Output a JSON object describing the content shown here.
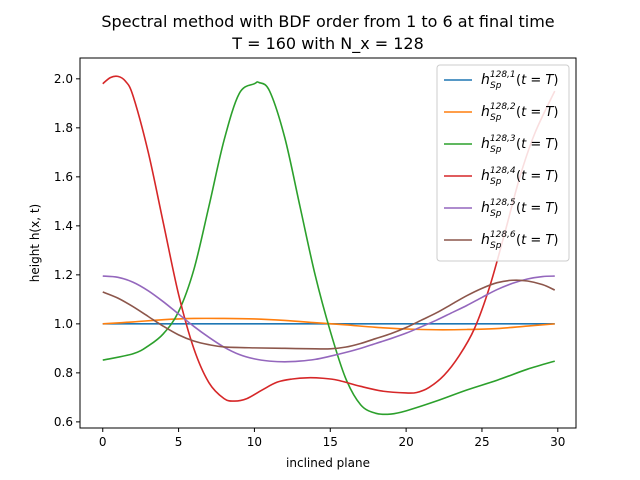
{
  "chart_data": {
    "type": "line",
    "title_lines": [
      "Spectral method with BDF order from 1 to 6 at final time",
      "T = 160 with N_x = 128"
    ],
    "xlabel": "inclined plane",
    "ylabel": "height h(x, t)",
    "xlim": [
      -1.5,
      31.2
    ],
    "ylim": [
      0.575,
      2.085
    ],
    "xticks": [
      0,
      5,
      10,
      15,
      20,
      25,
      30
    ],
    "yticks": [
      0.6,
      0.8,
      1.0,
      1.2,
      1.4,
      1.6,
      1.8,
      2.0
    ],
    "xtick_labels": [
      "0",
      "5",
      "10",
      "15",
      "20",
      "25",
      "30"
    ],
    "ytick_labels": [
      "0.6",
      "0.8",
      "1.0",
      "1.2",
      "1.4",
      "1.6",
      "1.8",
      "2.0"
    ],
    "grid": false,
    "legend_position": "top-right",
    "series": [
      {
        "legend": {
          "base": "h",
          "sub": "Sp",
          "sup": "128,1",
          "tail_a": "(",
          "tail_t": "t",
          "tail_b": " = ",
          "tail_T": "T",
          "tail_c": ")"
        },
        "color": "#1f77b4",
        "x": [
          0,
          5,
          10,
          15,
          20,
          25,
          29.8
        ],
        "y": [
          1.0,
          1.0,
          1.0,
          1.0,
          1.0,
          1.0,
          1.0
        ]
      },
      {
        "legend": {
          "base": "h",
          "sub": "Sp",
          "sup": "128,2",
          "tail_a": "(",
          "tail_t": "t",
          "tail_b": " = ",
          "tail_T": "T",
          "tail_c": ")"
        },
        "color": "#ff7f0e",
        "x": [
          0,
          2,
          4,
          6,
          8,
          10,
          12,
          14,
          16,
          18,
          20,
          22,
          24,
          26,
          28,
          29.8
        ],
        "y": [
          1.0,
          1.008,
          1.017,
          1.022,
          1.022,
          1.02,
          1.014,
          1.005,
          0.996,
          0.986,
          0.979,
          0.976,
          0.977,
          0.981,
          0.991,
          1.0
        ]
      },
      {
        "legend": {
          "base": "h",
          "sub": "Sp",
          "sup": "128,3",
          "tail_a": "(",
          "tail_t": "t",
          "tail_b": " = ",
          "tail_T": "T",
          "tail_c": ")"
        },
        "color": "#2ca02c",
        "x": [
          0,
          2,
          3,
          4,
          5,
          6,
          7,
          8,
          9,
          10,
          10.3,
          11,
          12,
          13,
          14,
          15,
          16,
          17,
          18,
          19,
          20,
          22,
          24,
          26,
          28,
          29.8
        ],
        "y": [
          0.852,
          0.878,
          0.91,
          0.96,
          1.05,
          1.22,
          1.48,
          1.75,
          1.94,
          1.98,
          1.985,
          1.95,
          1.76,
          1.48,
          1.2,
          0.97,
          0.78,
          0.67,
          0.635,
          0.632,
          0.645,
          0.685,
          0.73,
          0.77,
          0.815,
          0.848
        ]
      },
      {
        "legend": {
          "base": "h",
          "sub": "Sp",
          "sup": "128,4",
          "tail_a": "(",
          "tail_t": "t",
          "tail_b": " = ",
          "tail_T": "T",
          "tail_c": ")"
        },
        "color": "#d62728",
        "x": [
          0,
          0.5,
          1,
          1.5,
          2,
          3,
          4,
          5,
          6,
          7,
          8,
          8.7,
          9.5,
          10.5,
          11.5,
          12.5,
          13.5,
          14.5,
          15.5,
          17,
          18.5,
          20,
          20.7,
          21.5,
          22.5,
          23.5,
          24.5,
          25.5,
          26.5,
          27.5,
          28.5,
          29.8
        ],
        "y": [
          1.98,
          2.005,
          2.01,
          1.99,
          1.93,
          1.7,
          1.41,
          1.12,
          0.9,
          0.76,
          0.695,
          0.685,
          0.695,
          0.73,
          0.762,
          0.775,
          0.78,
          0.778,
          0.77,
          0.745,
          0.725,
          0.718,
          0.72,
          0.74,
          0.79,
          0.87,
          0.98,
          1.15,
          1.37,
          1.6,
          1.78,
          1.95
        ]
      },
      {
        "legend": {
          "base": "h",
          "sub": "Sp",
          "sup": "128,5",
          "tail_a": "(",
          "tail_t": "t",
          "tail_b": " = ",
          "tail_T": "T",
          "tail_c": ")"
        },
        "color": "#9467bd",
        "x": [
          0,
          1,
          2,
          3,
          4,
          5,
          6,
          7,
          8,
          9,
          10,
          11,
          12,
          13,
          14,
          15,
          16,
          17,
          18,
          19,
          20,
          21,
          22,
          23,
          24,
          25,
          26,
          27,
          28,
          29,
          29.8
        ],
        "y": [
          1.195,
          1.19,
          1.17,
          1.135,
          1.09,
          1.04,
          0.99,
          0.945,
          0.905,
          0.875,
          0.857,
          0.848,
          0.845,
          0.848,
          0.855,
          0.868,
          0.883,
          0.9,
          0.92,
          0.94,
          0.962,
          0.988,
          1.015,
          1.045,
          1.075,
          1.108,
          1.14,
          1.165,
          1.183,
          1.193,
          1.195
        ]
      },
      {
        "legend": {
          "base": "h",
          "sub": "Sp",
          "sup": "128,6",
          "tail_a": "(",
          "tail_t": "t",
          "tail_b": " = ",
          "tail_T": "T",
          "tail_c": ")"
        },
        "color": "#8c564b",
        "x": [
          0,
          1,
          2,
          3,
          4,
          5,
          6,
          7,
          8,
          10,
          12,
          14,
          15,
          16,
          17,
          18,
          19,
          20,
          21,
          22,
          23,
          24,
          25,
          26,
          27,
          28,
          29,
          29.8
        ],
        "y": [
          1.13,
          1.105,
          1.07,
          1.03,
          0.99,
          0.955,
          0.93,
          0.915,
          0.906,
          0.902,
          0.9,
          0.898,
          0.898,
          0.905,
          0.92,
          0.94,
          0.96,
          0.985,
          1.015,
          1.045,
          1.08,
          1.115,
          1.145,
          1.168,
          1.178,
          1.175,
          1.16,
          1.138
        ]
      }
    ]
  }
}
